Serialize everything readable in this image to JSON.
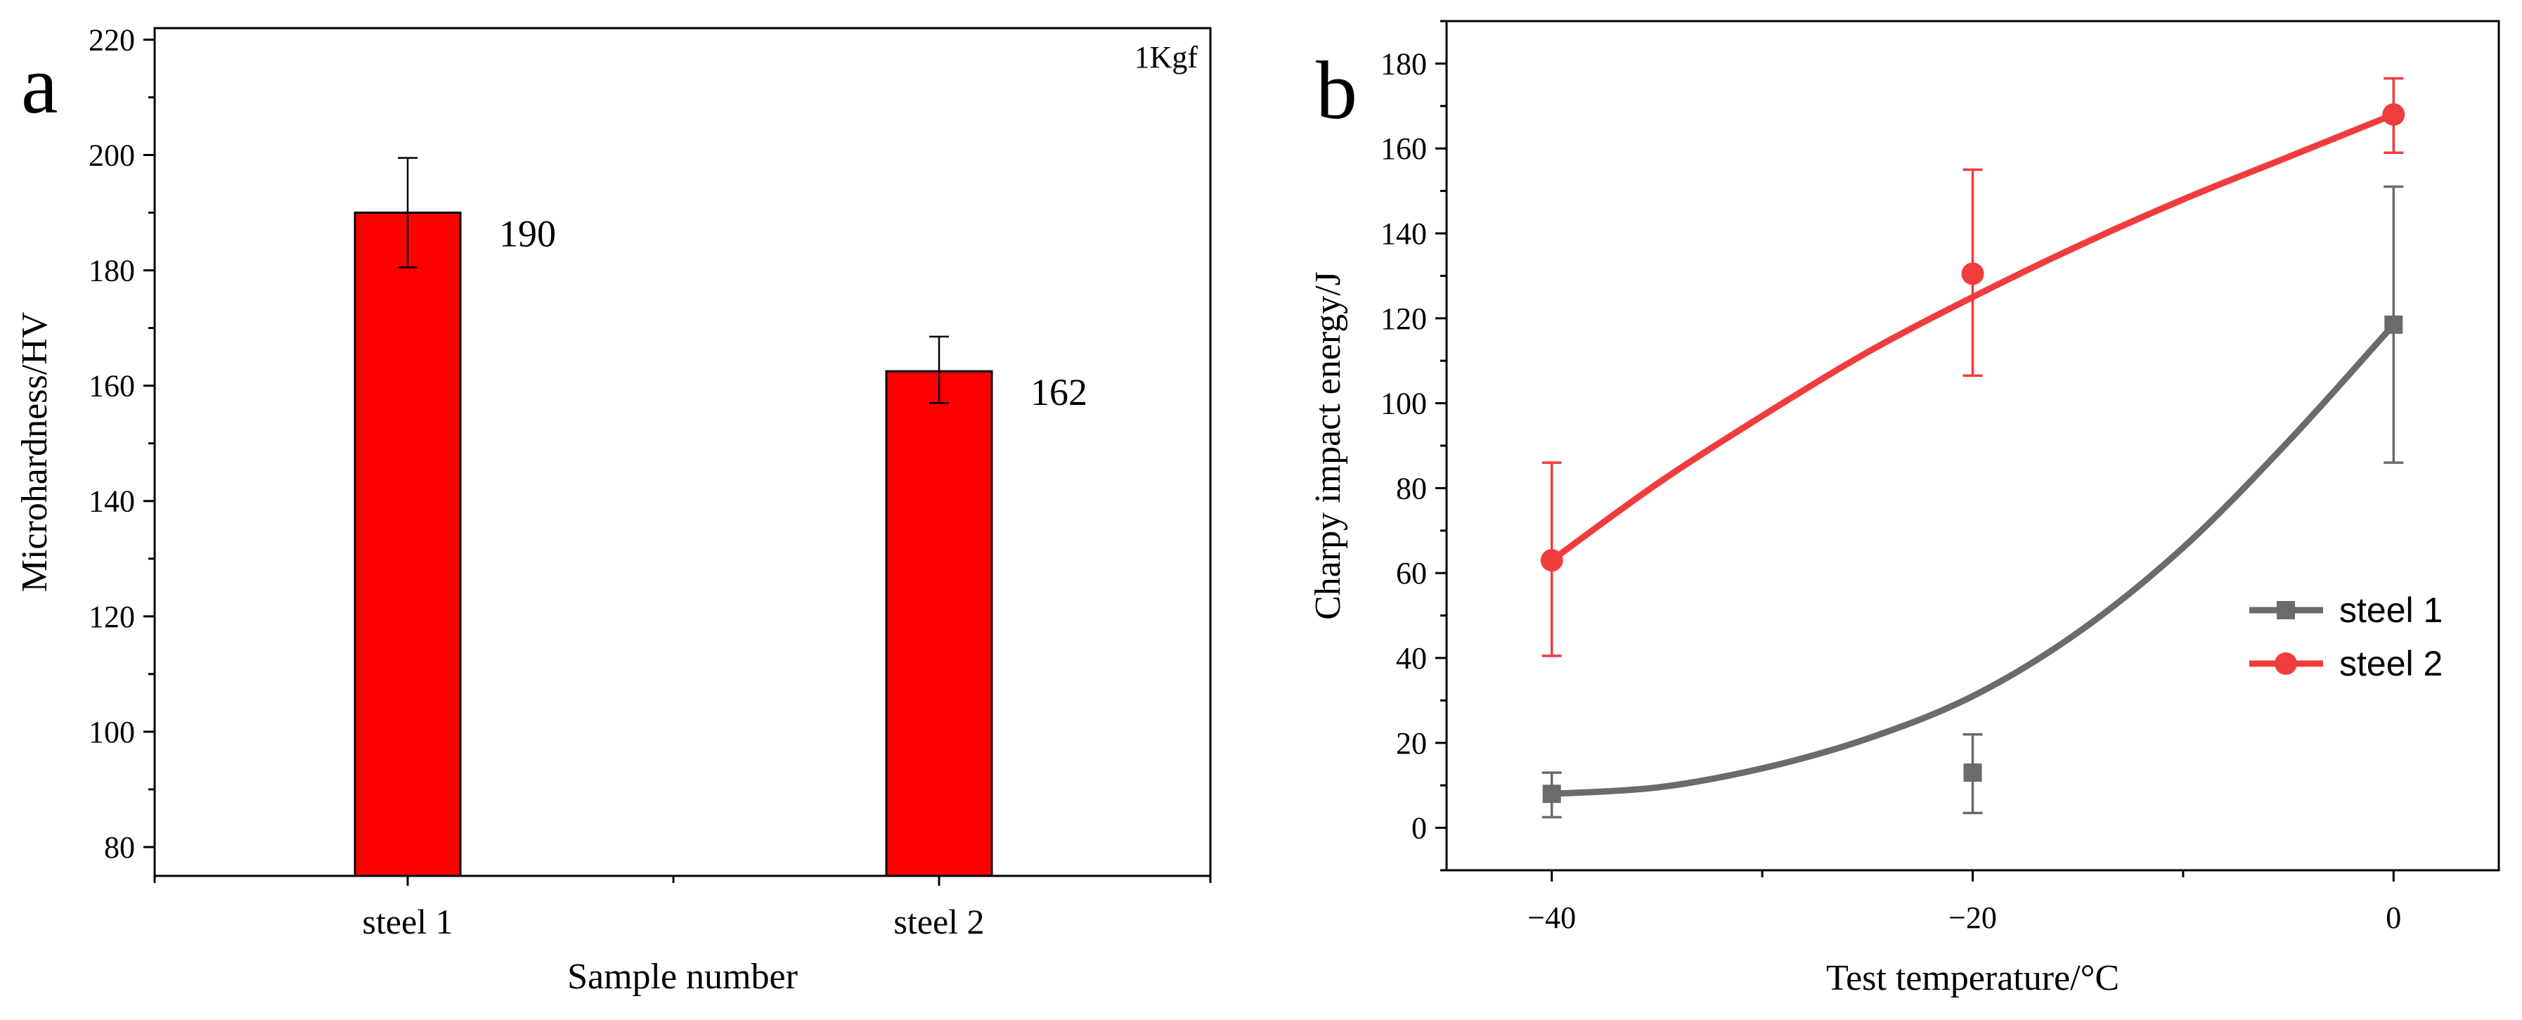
{
  "colors": {
    "bar": "#ff0000",
    "steel1": "#6b6b6b",
    "steel2": "#f03c3c",
    "axis": "#000000"
  },
  "chart_data": [
    {
      "type": "bar",
      "panel_label": "a",
      "annotation": "1Kgf",
      "categories": [
        "steel 1",
        "steel 2"
      ],
      "values": [
        190,
        162.5
      ],
      "errors": [
        [
          180.5,
          199.5
        ],
        [
          157,
          168.5
        ]
      ],
      "value_labels": [
        "190",
        "162"
      ],
      "xlabel": "Sample number",
      "ylabel": "Microhardness/HV",
      "ylim": [
        75,
        222
      ],
      "yticks": [
        "80",
        "100",
        "120",
        "140",
        "160",
        "180",
        "200",
        "220"
      ]
    },
    {
      "type": "line",
      "panel_label": "b",
      "xlabel": "Test temperature/°C",
      "ylabel": "Charpy impact energy/J",
      "xlim": [
        -45,
        5
      ],
      "ylim": [
        -10,
        190
      ],
      "xticks": [
        "−40",
        "−20",
        "0"
      ],
      "yticks": [
        "0",
        "20",
        "40",
        "60",
        "80",
        "100",
        "120",
        "140",
        "160",
        "180"
      ],
      "legend_position": "lower-right",
      "series": [
        {
          "name": "steel 1",
          "marker": "square",
          "x": [
            -40,
            -20,
            0
          ],
          "y": [
            8,
            13,
            118.5
          ],
          "errors": [
            [
              2.5,
              13
            ],
            [
              3.5,
              22
            ],
            [
              86,
              151
            ]
          ],
          "fit": [
            [
              -40,
              8
            ],
            [
              -35,
              9.5
            ],
            [
              -30,
              14
            ],
            [
              -25,
              21
            ],
            [
              -20,
              31
            ],
            [
              -15,
              46
            ],
            [
              -10,
              66
            ],
            [
              -5,
              91
            ],
            [
              0,
              118.5
            ]
          ]
        },
        {
          "name": "steel 2",
          "marker": "circle",
          "x": [
            -40,
            -20,
            0
          ],
          "y": [
            63,
            130.5,
            168
          ],
          "errors": [
            [
              40.5,
              86
            ],
            [
              106.5,
              155
            ],
            [
              159,
              176.5
            ]
          ],
          "fit": [
            [
              -40,
              63
            ],
            [
              -35,
              81
            ],
            [
              -30,
              97
            ],
            [
              -25,
              112
            ],
            [
              -20,
              125
            ],
            [
              -15,
              137
            ],
            [
              -10,
              148
            ],
            [
              -5,
              158
            ],
            [
              0,
              168
            ]
          ]
        }
      ]
    }
  ]
}
